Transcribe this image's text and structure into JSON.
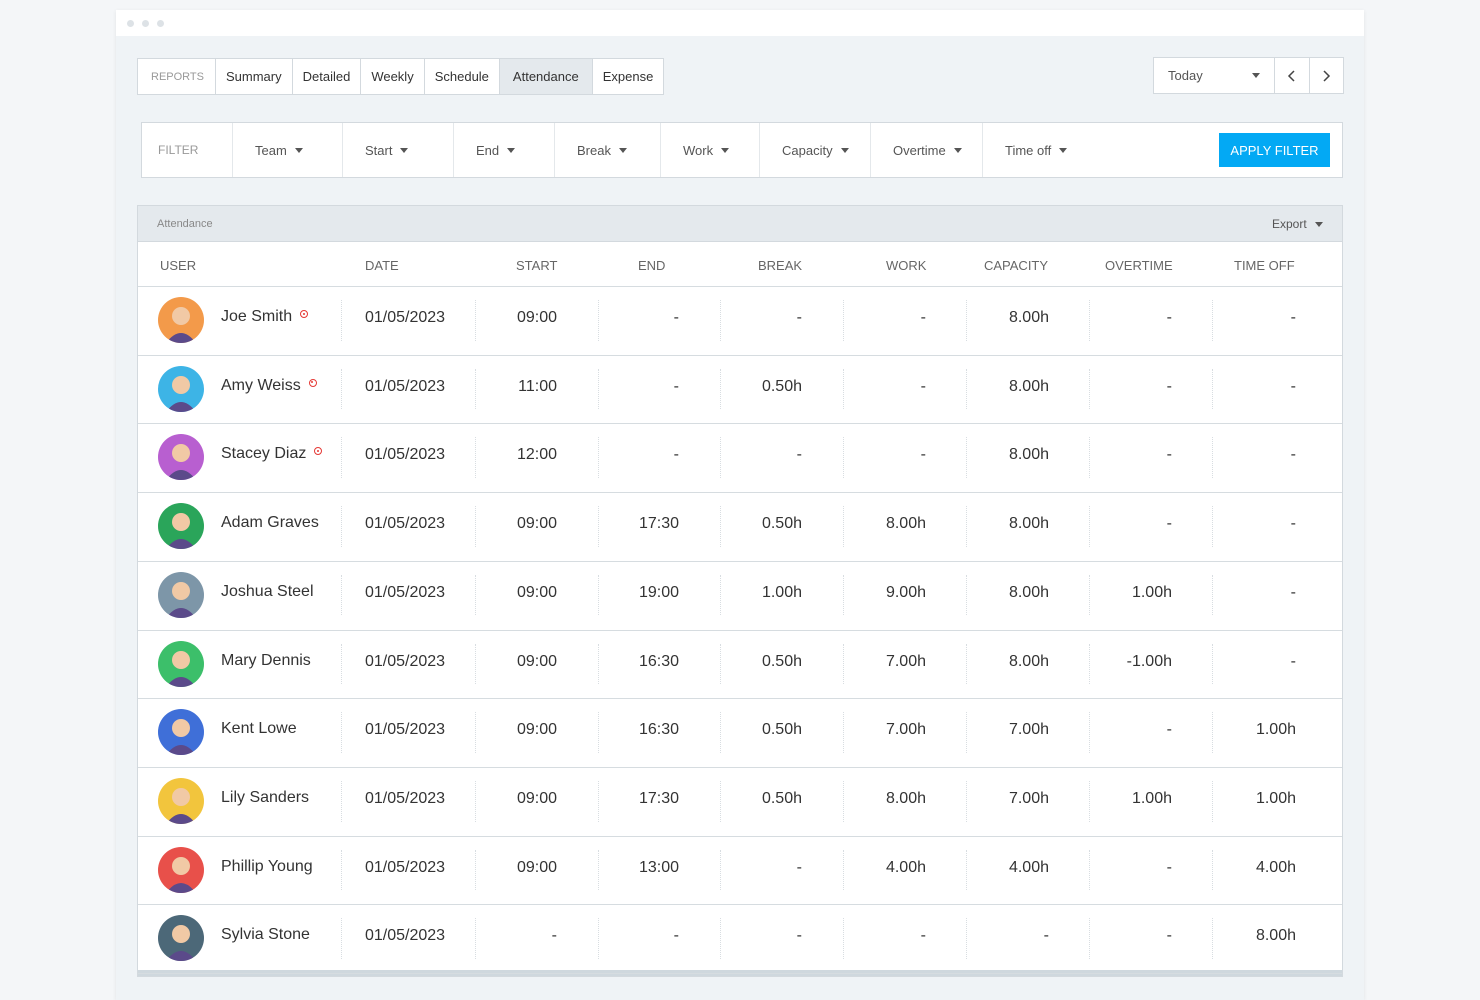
{
  "tabs": {
    "label": "REPORTS",
    "items": [
      "Summary",
      "Detailed",
      "Weekly",
      "Schedule",
      "Attendance",
      "Expense"
    ],
    "active": "Attendance"
  },
  "date_picker": {
    "label": "Today"
  },
  "filter": {
    "label": "FILTER",
    "items": [
      "Team",
      "Start",
      "End",
      "Break",
      "Work",
      "Capacity",
      "Overtime",
      "Time off"
    ],
    "button": "APPLY FILTER"
  },
  "table": {
    "title": "Attendance",
    "export": "Export",
    "columns": [
      "USER",
      "DATE",
      "START",
      "END",
      "BREAK",
      "WORK",
      "CAPACITY",
      "OVERTIME",
      "TIME OFF"
    ],
    "rows": [
      {
        "user": "Joe Smith",
        "timer": true,
        "avatar_color": "#f39a4a",
        "cells": [
          "01/05/2023",
          "09:00",
          "-",
          "-",
          "-",
          "8.00h",
          "-",
          "-"
        ]
      },
      {
        "user": "Amy Weiss",
        "timer": true,
        "avatar_color": "#3db4e6",
        "cells": [
          "01/05/2023",
          "11:00",
          "-",
          "0.50h",
          "-",
          "8.00h",
          "-",
          "-"
        ]
      },
      {
        "user": "Stacey Diaz",
        "timer": true,
        "avatar_color": "#b85fd0",
        "cells": [
          "01/05/2023",
          "12:00",
          "-",
          "-",
          "-",
          "8.00h",
          "-",
          "-"
        ]
      },
      {
        "user": "Adam Graves",
        "timer": false,
        "avatar_color": "#2aa55a",
        "cells": [
          "01/05/2023",
          "09:00",
          "17:30",
          "0.50h",
          "8.00h",
          "8.00h",
          "-",
          "-"
        ]
      },
      {
        "user": "Joshua Steel",
        "timer": false,
        "avatar_color": "#7d96a8",
        "cells": [
          "01/05/2023",
          "09:00",
          "19:00",
          "1.00h",
          "9.00h",
          "8.00h",
          "1.00h",
          "-"
        ]
      },
      {
        "user": "Mary Dennis",
        "timer": false,
        "avatar_color": "#3cbf6a",
        "cells": [
          "01/05/2023",
          "09:00",
          "16:30",
          "0.50h",
          "7.00h",
          "8.00h",
          "-1.00h",
          "-"
        ]
      },
      {
        "user": "Kent Lowe",
        "timer": false,
        "avatar_color": "#3f6fd8",
        "cells": [
          "01/05/2023",
          "09:00",
          "16:30",
          "0.50h",
          "7.00h",
          "7.00h",
          "-",
          "1.00h"
        ]
      },
      {
        "user": "Lily Sanders",
        "timer": false,
        "avatar_color": "#f2c53d",
        "cells": [
          "01/05/2023",
          "09:00",
          "17:30",
          "0.50h",
          "8.00h",
          "7.00h",
          "1.00h",
          "1.00h"
        ]
      },
      {
        "user": "Phillip Young",
        "timer": false,
        "avatar_color": "#e8504a",
        "cells": [
          "01/05/2023",
          "09:00",
          "13:00",
          "-",
          "4.00h",
          "4.00h",
          "-",
          "4.00h"
        ]
      },
      {
        "user": "Sylvia Stone",
        "timer": false,
        "avatar_color": "#4c6878",
        "cells": [
          "01/05/2023",
          "-",
          "-",
          "-",
          "-",
          "-",
          "-",
          "8.00h"
        ]
      }
    ]
  }
}
